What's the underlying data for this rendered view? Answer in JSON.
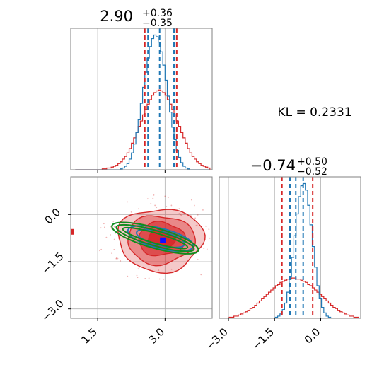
{
  "kl_text": "KL = 0.2331",
  "colors": {
    "red": "#d62728",
    "blue": "#1f77b4",
    "green": "#118c1e",
    "marker": "#1010ff",
    "frame": "#808080",
    "grid": "#b0b0b0"
  },
  "chart_data": [
    {
      "type": "histogram",
      "panel": "top-left",
      "title": {
        "value": "2.90",
        "plus": "+0.36",
        "minus": "−0.35"
      },
      "xlim": [
        0.9,
        4.05
      ],
      "x_ticks": [
        1.5,
        3.0
      ],
      "bins": [
        1.0,
        1.05,
        1.1,
        1.15,
        1.2,
        1.25,
        1.3,
        1.35,
        1.4,
        1.45,
        1.5,
        1.55,
        1.6,
        1.65,
        1.7,
        1.75,
        1.8,
        1.85,
        1.9,
        1.95,
        2.0,
        2.05,
        2.1,
        2.15,
        2.2,
        2.25,
        2.3,
        2.35,
        2.4,
        2.45,
        2.5,
        2.55,
        2.6,
        2.65,
        2.7,
        2.75,
        2.8,
        2.85,
        2.9,
        2.95,
        3.0,
        3.05,
        3.1,
        3.15,
        3.2,
        3.25,
        3.3,
        3.35,
        3.4,
        3.45,
        3.5,
        3.55,
        3.6,
        3.65,
        3.7,
        3.75,
        3.8,
        3.85,
        3.9,
        3.95,
        4.0
      ],
      "series": [
        {
          "color": "#d62728",
          "values": [
            0,
            0,
            0,
            0,
            0,
            0,
            0,
            0,
            0,
            0,
            0,
            0,
            1,
            1,
            2,
            2,
            3,
            4,
            5,
            7,
            9,
            12,
            15,
            19,
            24,
            30,
            36,
            42,
            49,
            55,
            62,
            68,
            74,
            79,
            84,
            87,
            89,
            90,
            89,
            87,
            84,
            79,
            74,
            68,
            62,
            55,
            49,
            42,
            36,
            30,
            24,
            19,
            15,
            12,
            9,
            7,
            5,
            4,
            3,
            2
          ]
        },
        {
          "color": "#1f77b4",
          "values": [
            0,
            0,
            0,
            0,
            0,
            0,
            0,
            0,
            0,
            0,
            0,
            0,
            0,
            0,
            0,
            0,
            0,
            0,
            0,
            0,
            1,
            2,
            4,
            7,
            12,
            19,
            29,
            42,
            57,
            75,
            93,
            110,
            126,
            139,
            148,
            152,
            150,
            144,
            133,
            118,
            101,
            83,
            65,
            48,
            34,
            22,
            14,
            8,
            4,
            2,
            1,
            0,
            0,
            0,
            0,
            0,
            0,
            0,
            0,
            0
          ]
        }
      ],
      "quantile_lines": [
        {
          "color": "#d62728",
          "values": [
            2.55,
            3.26
          ]
        },
        {
          "color": "#1f77b4",
          "values": [
            2.62,
            3.2,
            2.88
          ]
        }
      ]
    },
    {
      "type": "scatter",
      "panel": "bottom-left",
      "xlim": [
        0.9,
        4.05
      ],
      "ylim": [
        -3.3,
        1.2
      ],
      "x_ticks": [
        1.5,
        3.0
      ],
      "y_ticks": [
        0.0,
        -1.5,
        -3.0
      ],
      "red_contour_levels": [
        {
          "cx": 2.9,
          "cy": -0.8,
          "rx": 0.95,
          "ry": 1.0,
          "opacity": 0.25
        },
        {
          "cx": 2.9,
          "cy": -0.8,
          "rx": 0.75,
          "ry": 0.77,
          "opacity": 0.4
        },
        {
          "cx": 2.92,
          "cy": -0.78,
          "rx": 0.52,
          "ry": 0.53,
          "opacity": 0.6
        },
        {
          "cx": 2.92,
          "cy": -0.78,
          "rx": 0.3,
          "ry": 0.3,
          "opacity": 0.85
        }
      ],
      "blue_contours": [
        {
          "cx": 2.9,
          "cy": -0.76,
          "rx": 0.75,
          "ry": 0.32,
          "angle": 14
        },
        {
          "cx": 2.9,
          "cy": -0.76,
          "rx": 0.55,
          "ry": 0.22,
          "angle": 14
        }
      ],
      "green_contours": [
        {
          "cx": 2.78,
          "cy": -0.75,
          "rx": 1.0,
          "ry": 0.32,
          "angle": 16
        },
        {
          "cx": 2.78,
          "cy": -0.75,
          "rx": 0.9,
          "ry": 0.24,
          "angle": 16
        },
        {
          "cx": 2.78,
          "cy": -0.75,
          "rx": 0.75,
          "ry": 0.16,
          "angle": 16
        }
      ],
      "true_point": {
        "x": 2.95,
        "y": -0.82
      },
      "outlier": {
        "x": 0.93,
        "y": -0.55
      }
    },
    {
      "type": "histogram",
      "panel": "bottom-right",
      "title": {
        "value": "−0.74",
        "plus": "+0.50",
        "minus": "−0.52"
      },
      "xlim": [
        -3.3,
        1.3
      ],
      "x_ticks": [
        -3.0,
        -1.5,
        0.0
      ],
      "bins": [
        -3.2,
        -3.125,
        -3.05,
        -2.975,
        -2.9,
        -2.825,
        -2.75,
        -2.675,
        -2.6,
        -2.525,
        -2.45,
        -2.375,
        -2.3,
        -2.225,
        -2.15,
        -2.075,
        -2.0,
        -1.925,
        -1.85,
        -1.775,
        -1.7,
        -1.625,
        -1.55,
        -1.475,
        -1.4,
        -1.325,
        -1.25,
        -1.175,
        -1.1,
        -1.025,
        -0.95,
        -0.875,
        -0.8,
        -0.725,
        -0.65,
        -0.575,
        -0.5,
        -0.425,
        -0.35,
        -0.275,
        -0.2,
        -0.125,
        -0.05,
        0.025,
        0.1,
        0.175,
        0.25,
        0.325,
        0.4,
        0.475,
        0.55,
        0.625,
        0.7,
        0.775,
        0.85,
        0.925,
        1.0,
        1.075,
        1.15,
        1.225,
        1.3
      ],
      "series": [
        {
          "color": "#d62728",
          "values": [
            0,
            0,
            0,
            1,
            1,
            2,
            2,
            3,
            4,
            5,
            6,
            7,
            9,
            10,
            12,
            14,
            16,
            18,
            20,
            22,
            24,
            26,
            28,
            30,
            31,
            33,
            34,
            35,
            36,
            36,
            37,
            37,
            36,
            36,
            35,
            34,
            33,
            31,
            30,
            28,
            26,
            24,
            22,
            20,
            18,
            16,
            14,
            12,
            10,
            9,
            7,
            6,
            5,
            4,
            3,
            2,
            2,
            1,
            1,
            0
          ]
        },
        {
          "color": "#1f77b4",
          "values": [
            0,
            0,
            0,
            0,
            0,
            0,
            0,
            0,
            0,
            0,
            0,
            0,
            0,
            0,
            0,
            0,
            0,
            0,
            0,
            0,
            0,
            0,
            0,
            1,
            2,
            4,
            8,
            14,
            24,
            38,
            56,
            76,
            96,
            112,
            122,
            124,
            118,
            104,
            86,
            66,
            47,
            30,
            18,
            10,
            5,
            2,
            1,
            0,
            0,
            0,
            0,
            0,
            0,
            0,
            0,
            0,
            0,
            0,
            0,
            0
          ]
        }
      ],
      "quantile_lines": [
        {
          "color": "#d62728",
          "values": [
            -1.26,
            -0.26
          ]
        },
        {
          "color": "#1f77b4",
          "values": [
            -1.0,
            -0.57,
            -0.81
          ]
        }
      ]
    }
  ]
}
